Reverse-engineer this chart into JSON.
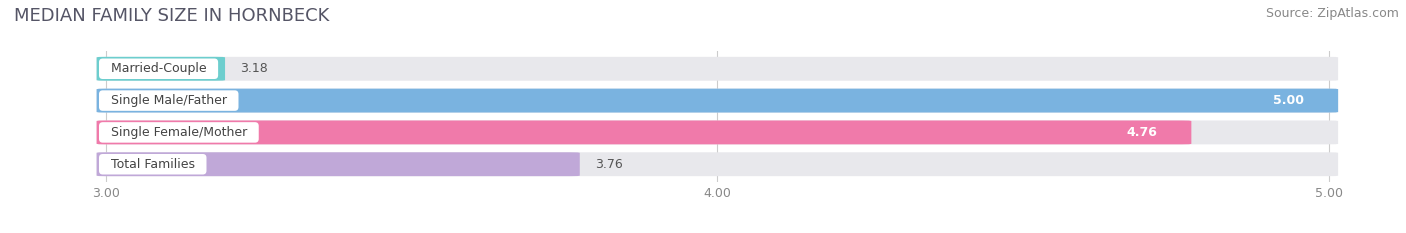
{
  "title": "MEDIAN FAMILY SIZE IN HORNBECK",
  "source": "Source: ZipAtlas.com",
  "categories": [
    "Married-Couple",
    "Single Male/Father",
    "Single Female/Mother",
    "Total Families"
  ],
  "values": [
    3.18,
    5.0,
    4.76,
    3.76
  ],
  "bar_colors": [
    "#6dcece",
    "#7ab3e0",
    "#f07aaa",
    "#c0a8d8"
  ],
  "value_inside": [
    false,
    true,
    true,
    false
  ],
  "bar_bg_color": "#e8e8ec",
  "x_min": 3.0,
  "x_max": 5.0,
  "x_ticks": [
    3.0,
    4.0,
    5.0
  ],
  "x_tick_labels": [
    "3.00",
    "4.00",
    "5.00"
  ],
  "bar_height": 0.72,
  "fig_bg_color": "#ffffff",
  "plot_bg_color": "#f5f5f8",
  "title_fontsize": 13,
  "source_fontsize": 9,
  "label_fontsize": 9,
  "value_fontsize": 9
}
